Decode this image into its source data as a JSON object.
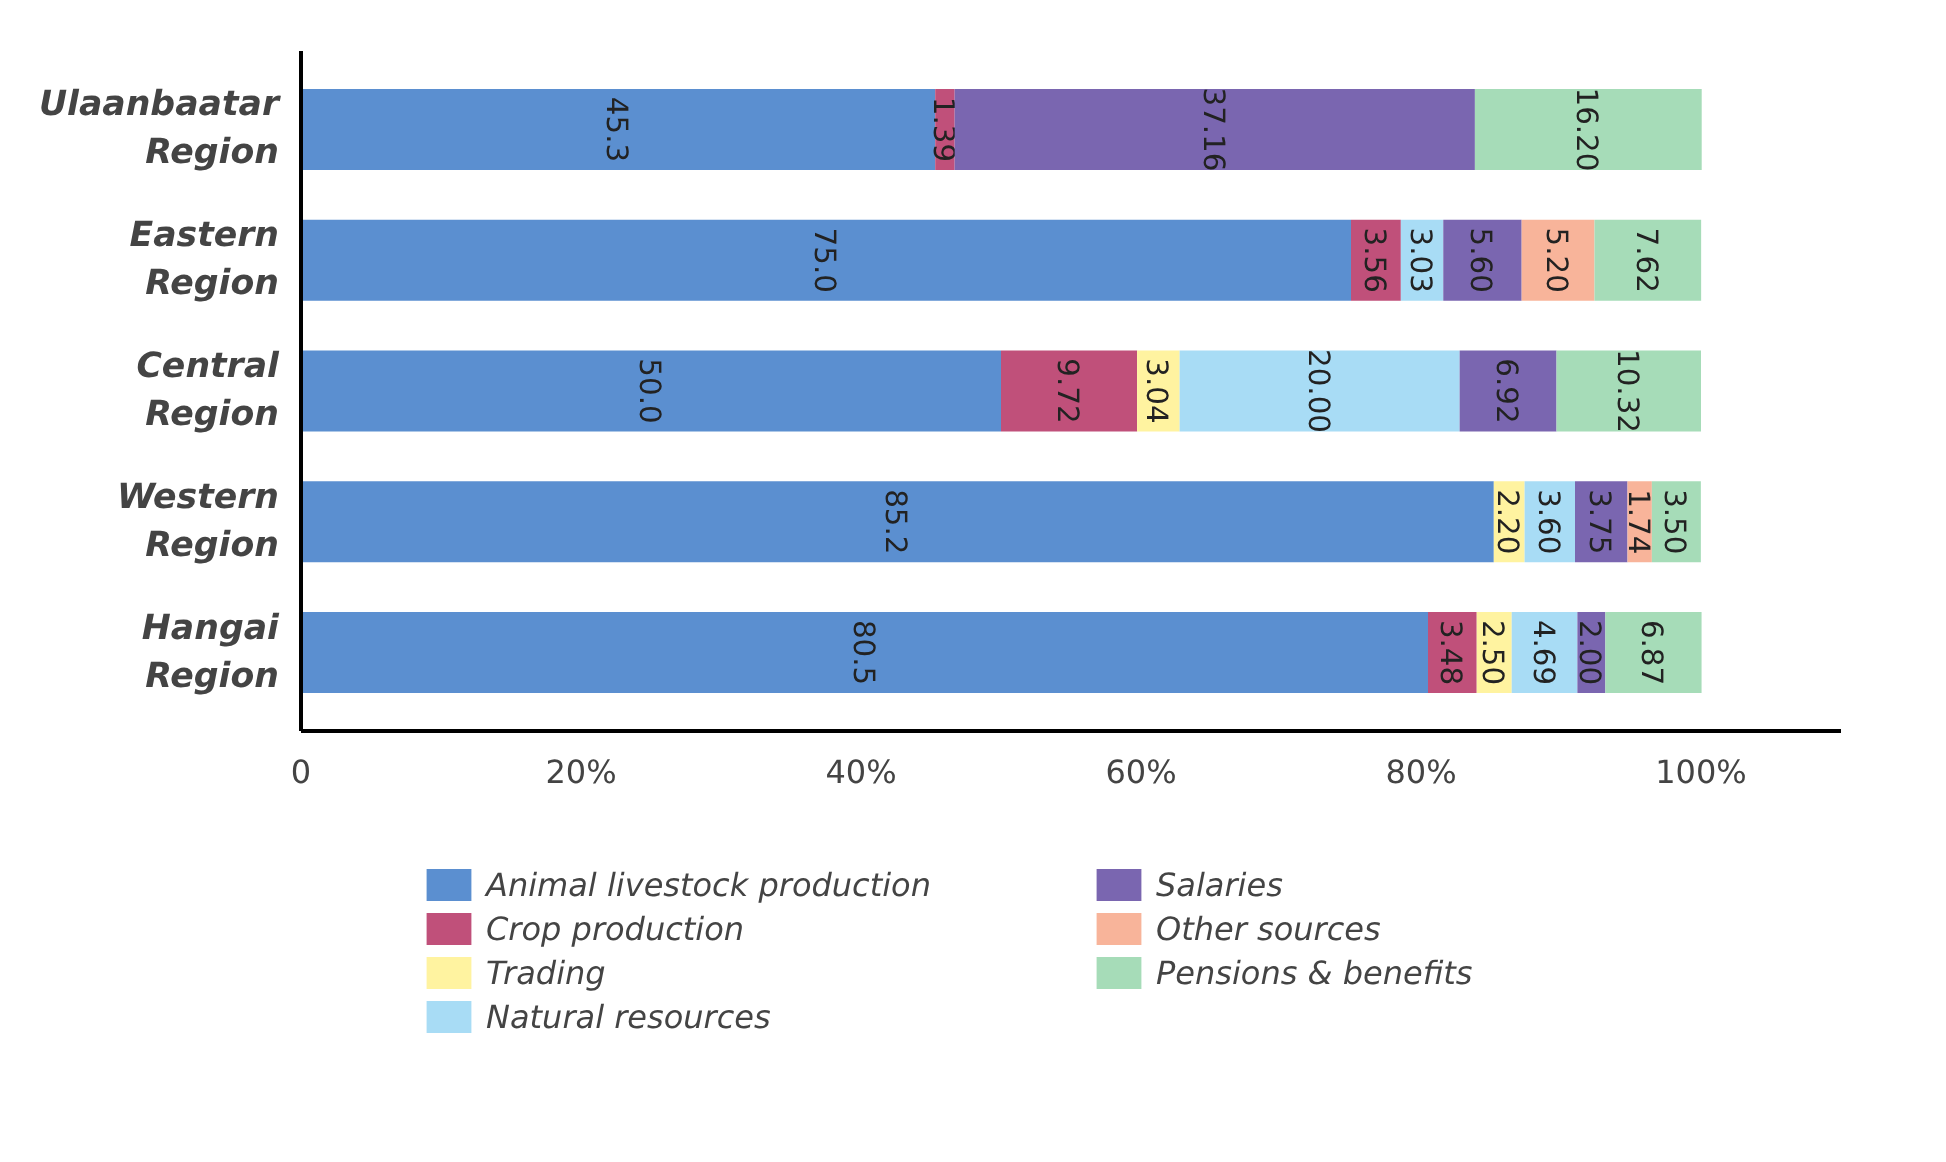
{
  "chart_data": {
    "type": "bar",
    "orientation": "horizontal",
    "stacked": true,
    "categories": [
      "Ulaanbaatar Region",
      "Eastern Region",
      "Central Region",
      "Western Region",
      "Hangai Region"
    ],
    "series": [
      {
        "name": "Animal livestock production",
        "color": "#5b8fd0",
        "values": [
          45.3,
          75.0,
          50.0,
          85.2,
          80.5
        ],
        "value_labels": [
          "45.3",
          "75.0",
          "50.0",
          "85.2",
          "80.5"
        ]
      },
      {
        "name": "Crop production",
        "color": "#c0507a",
        "values": [
          1.39,
          3.56,
          9.72,
          null,
          3.48
        ],
        "value_labels": [
          "1.39",
          "3.56",
          "9.72",
          null,
          "3.48"
        ]
      },
      {
        "name": "Trading",
        "color": "#fff3a0",
        "values": [
          null,
          null,
          3.04,
          2.2,
          2.5
        ],
        "value_labels": [
          null,
          null,
          "3.04",
          "2.20",
          "2.50"
        ]
      },
      {
        "name": "Natural resources",
        "color": "#a8dcf5",
        "values": [
          null,
          3.03,
          20.0,
          3.6,
          4.69
        ],
        "value_labels": [
          null,
          "3.03",
          "20.00",
          "3.60",
          "4.69"
        ]
      },
      {
        "name": "Salaries",
        "color": "#7a66b0",
        "values": [
          37.16,
          5.6,
          6.92,
          3.75,
          2.0
        ],
        "value_labels": [
          "37.16",
          "5.60",
          "6.92",
          "3.75",
          "2.00"
        ]
      },
      {
        "name": "Other sources",
        "color": "#f8b49a",
        "values": [
          null,
          5.2,
          null,
          1.74,
          null
        ],
        "value_labels": [
          null,
          "5.20",
          null,
          "1.74",
          null
        ]
      },
      {
        "name": "Pensions & benefits",
        "color": "#a6dcb8",
        "values": [
          16.2,
          7.62,
          10.32,
          3.5,
          6.87
        ],
        "value_labels": [
          "16.20",
          "7.62",
          "10.32",
          "3.50",
          "6.87"
        ]
      }
    ],
    "xlim": [
      0,
      110
    ],
    "xticks": [
      0,
      {
        "value": 20,
        "label": "20%"
      },
      {
        "value": 40,
        "label": "40%"
      },
      {
        "value": 60,
        "label": "60%"
      },
      {
        "value": 80,
        "label": "80%"
      },
      {
        "value": 100,
        "label": "100%"
      }
    ],
    "grid": false,
    "legend": "bottom"
  }
}
